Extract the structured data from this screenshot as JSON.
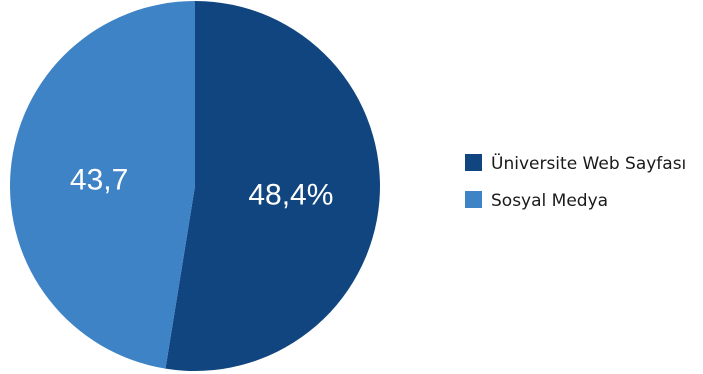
{
  "chart_data": {
    "type": "pie",
    "title": "",
    "legend_position": "right",
    "slices": [
      {
        "name": "Üniversite Web Sayfası",
        "value": 48.4,
        "label": "48,4%",
        "color": "#11457f"
      },
      {
        "name": "Sosyal Medya",
        "value": 43.7,
        "label": "43,7",
        "color": "#3e83c6"
      }
    ]
  }
}
